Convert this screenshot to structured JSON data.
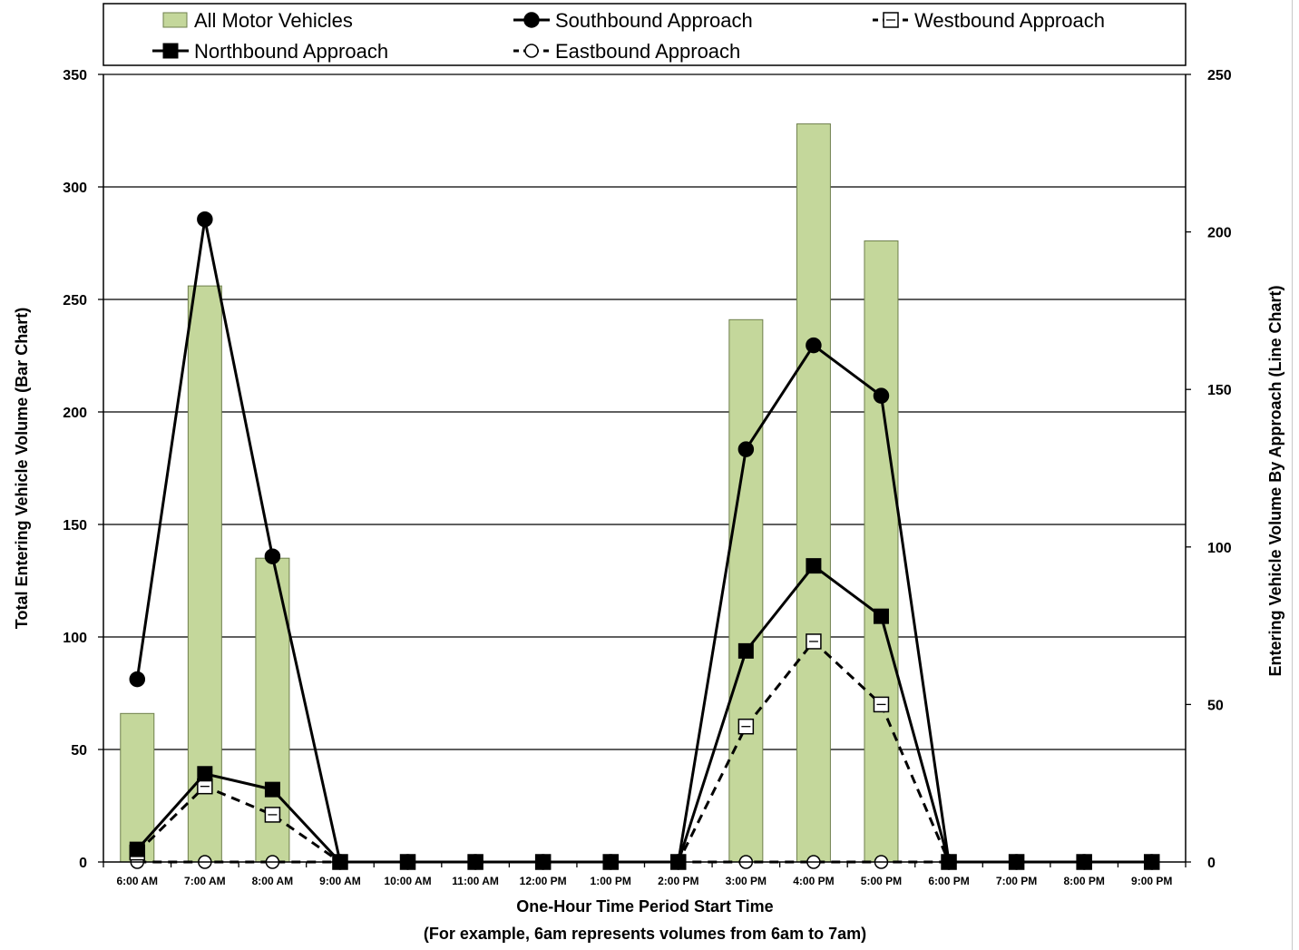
{
  "chart_data": {
    "type": "bar",
    "categories": [
      "6:00 AM",
      "7:00 AM",
      "8:00 AM",
      "9:00 AM",
      "10:00 AM",
      "11:00 AM",
      "12:00 PM",
      "1:00 PM",
      "2:00 PM",
      "3:00 PM",
      "4:00 PM",
      "5:00 PM",
      "6:00 PM",
      "7:00 PM",
      "8:00 PM",
      "9:00 PM"
    ],
    "bar_series": {
      "name": "All Motor Vehicles",
      "color": "#c4d79b",
      "values": [
        66,
        256,
        135,
        0,
        0,
        0,
        0,
        0,
        0,
        241,
        328,
        276,
        0,
        0,
        0,
        0
      ]
    },
    "series": [
      {
        "name": "Southbound Approach",
        "marker": "filled-circle",
        "line": "solid",
        "values": [
          58,
          204,
          97,
          0,
          0,
          0,
          0,
          0,
          0,
          131,
          164,
          148,
          0,
          0,
          0,
          0
        ]
      },
      {
        "name": "Northbound Approach",
        "marker": "filled-square",
        "line": "solid",
        "values": [
          4,
          28,
          23,
          0,
          0,
          0,
          0,
          0,
          0,
          67,
          94,
          78,
          0,
          0,
          0,
          0
        ]
      },
      {
        "name": "Westbound Approach",
        "marker": "open-square",
        "line": "dashed",
        "values": [
          3,
          24,
          15,
          0,
          0,
          0,
          0,
          0,
          0,
          43,
          70,
          50,
          0,
          0,
          0,
          0
        ]
      },
      {
        "name": "Eastbound Approach",
        "marker": "open-circle",
        "line": "dashed",
        "values": [
          0,
          0,
          0,
          0,
          0,
          0,
          0,
          0,
          0,
          0,
          0,
          0,
          0,
          0,
          0,
          0
        ]
      }
    ],
    "xlabel_line1": "One-Hour Time Period Start Time",
    "xlabel_line2": "(For example, 6am represents volumes from 6am to 7am)",
    "ylabel": "Total Entering Vehicle Volume (Bar Chart)",
    "y2label": "Entering Vehicle Volume By Approach (Line Chart)",
    "ylim": [
      0,
      350
    ],
    "y_ticks": [
      0,
      50,
      100,
      150,
      200,
      250,
      300,
      350
    ],
    "y2lim": [
      0,
      250
    ],
    "y2_ticks": [
      0,
      50,
      100,
      150,
      200,
      250
    ],
    "grid": true,
    "legend_position": "top"
  }
}
